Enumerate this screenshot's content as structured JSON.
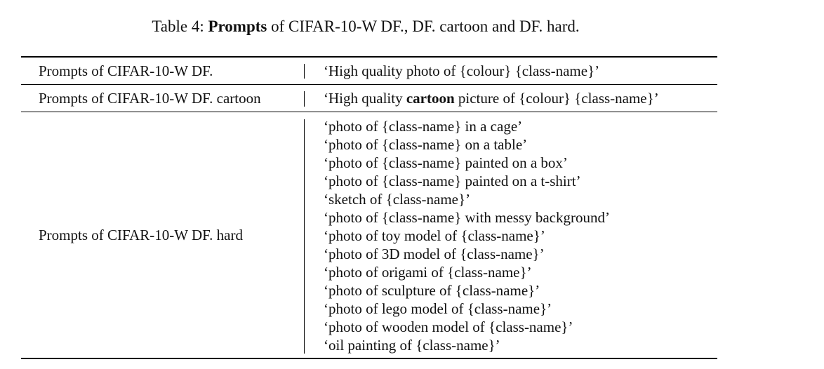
{
  "caption": {
    "prefix": "Table 4: ",
    "bold": "Prompts",
    "rest": " of CIFAR-10-W DF., DF. cartoon and DF. hard."
  },
  "rows": {
    "df": {
      "name": "Prompts of CIFAR-10-W DF.",
      "prompt": "‘High quality photo of {colour} {class-name}’"
    },
    "cartoon": {
      "name": "Prompts of CIFAR-10-W DF. cartoon",
      "prompt_before": "‘High quality ",
      "prompt_bold": "cartoon",
      "prompt_after": " picture of {colour} {class-name}’"
    },
    "hard": {
      "name": "Prompts of CIFAR-10-W DF. hard",
      "prompts": [
        "‘photo of {class-name} in a cage’",
        "‘photo of {class-name} on a table’",
        "‘photo of {class-name} painted on a box’",
        "‘photo of {class-name} painted on a t-shirt’",
        "‘sketch of {class-name}’",
        "‘photo of {class-name} with messy background’",
        "‘photo of toy model of {class-name}’",
        "‘photo of 3D model of {class-name}’",
        "‘photo of origami of {class-name}’",
        "‘photo of sculpture of {class-name}’",
        "‘photo of lego model of {class-name}’",
        "‘photo of wooden model of {class-name}’",
        "‘oil painting of {class-name}’"
      ]
    }
  }
}
